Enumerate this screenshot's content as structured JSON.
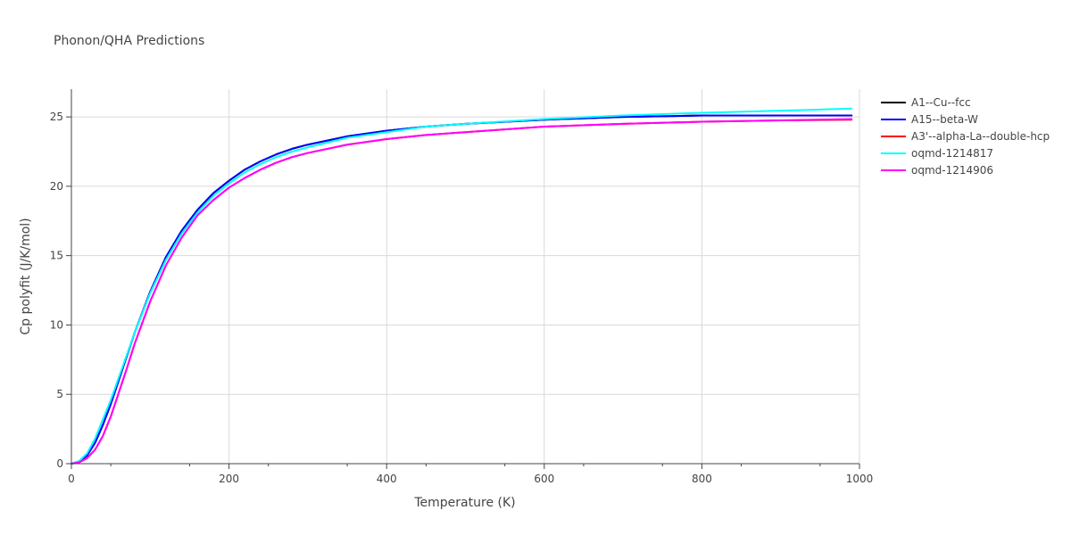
{
  "chart_data": {
    "type": "line",
    "title": "Phonon/QHA Predictions",
    "xlabel": "Temperature (K)",
    "ylabel": "Cp polyfit (J/K/mol)",
    "xlim": [
      0,
      1000
    ],
    "ylim": [
      0,
      27
    ],
    "x_ticks": [
      0,
      200,
      400,
      600,
      800,
      1000
    ],
    "y_ticks": [
      0,
      5,
      10,
      15,
      20,
      25
    ],
    "grid": true,
    "legend_position": "right",
    "x": [
      0,
      10,
      20,
      30,
      40,
      50,
      60,
      70,
      80,
      100,
      120,
      140,
      160,
      180,
      200,
      220,
      240,
      260,
      280,
      300,
      350,
      400,
      450,
      500,
      600,
      700,
      800,
      900,
      990
    ],
    "series": [
      {
        "name": "A1--Cu--fcc",
        "color": "#000000",
        "values": [
          0,
          0.15,
          0.6,
          1.5,
          2.8,
          4.3,
          6.0,
          7.7,
          9.4,
          12.4,
          14.9,
          16.8,
          18.3,
          19.5,
          20.4,
          21.2,
          21.8,
          22.3,
          22.7,
          23.0,
          23.6,
          24.0,
          24.3,
          24.5,
          24.8,
          25.0,
          25.1,
          25.1,
          25.1
        ]
      },
      {
        "name": "A15--beta-W",
        "color": "#0000ff",
        "values": [
          0,
          0.15,
          0.6,
          1.5,
          2.8,
          4.3,
          6.0,
          7.7,
          9.4,
          12.4,
          14.9,
          16.8,
          18.3,
          19.5,
          20.4,
          21.2,
          21.8,
          22.3,
          22.7,
          23.0,
          23.6,
          24.0,
          24.3,
          24.5,
          24.8,
          25.0,
          25.1,
          25.1,
          25.1
        ]
      },
      {
        "name": "A3'--alpha-La--double-hcp",
        "color": "#ff0000",
        "values": [
          0,
          0.1,
          0.4,
          1.0,
          2.0,
          3.4,
          5.1,
          6.8,
          8.6,
          11.7,
          14.3,
          16.3,
          17.9,
          19.0,
          19.9,
          20.6,
          21.2,
          21.7,
          22.1,
          22.4,
          23.0,
          23.4,
          23.7,
          23.9,
          24.3,
          24.5,
          24.65,
          24.75,
          24.8
        ]
      },
      {
        "name": "oqmd-1214817",
        "color": "#00ffff",
        "values": [
          0,
          0.2,
          0.75,
          1.8,
          3.2,
          4.6,
          6.2,
          7.8,
          9.4,
          12.3,
          14.7,
          16.6,
          18.1,
          19.3,
          20.2,
          21.0,
          21.6,
          22.1,
          22.5,
          22.8,
          23.5,
          23.9,
          24.3,
          24.5,
          24.85,
          25.1,
          25.3,
          25.45,
          25.6
        ]
      },
      {
        "name": "oqmd-1214906",
        "color": "#ff00ff",
        "values": [
          0,
          0.1,
          0.4,
          1.0,
          2.0,
          3.4,
          5.1,
          6.8,
          8.6,
          11.7,
          14.3,
          16.3,
          17.9,
          19.0,
          19.9,
          20.6,
          21.2,
          21.7,
          22.1,
          22.4,
          23.0,
          23.4,
          23.7,
          23.9,
          24.3,
          24.5,
          24.65,
          24.75,
          24.85
        ]
      }
    ]
  }
}
